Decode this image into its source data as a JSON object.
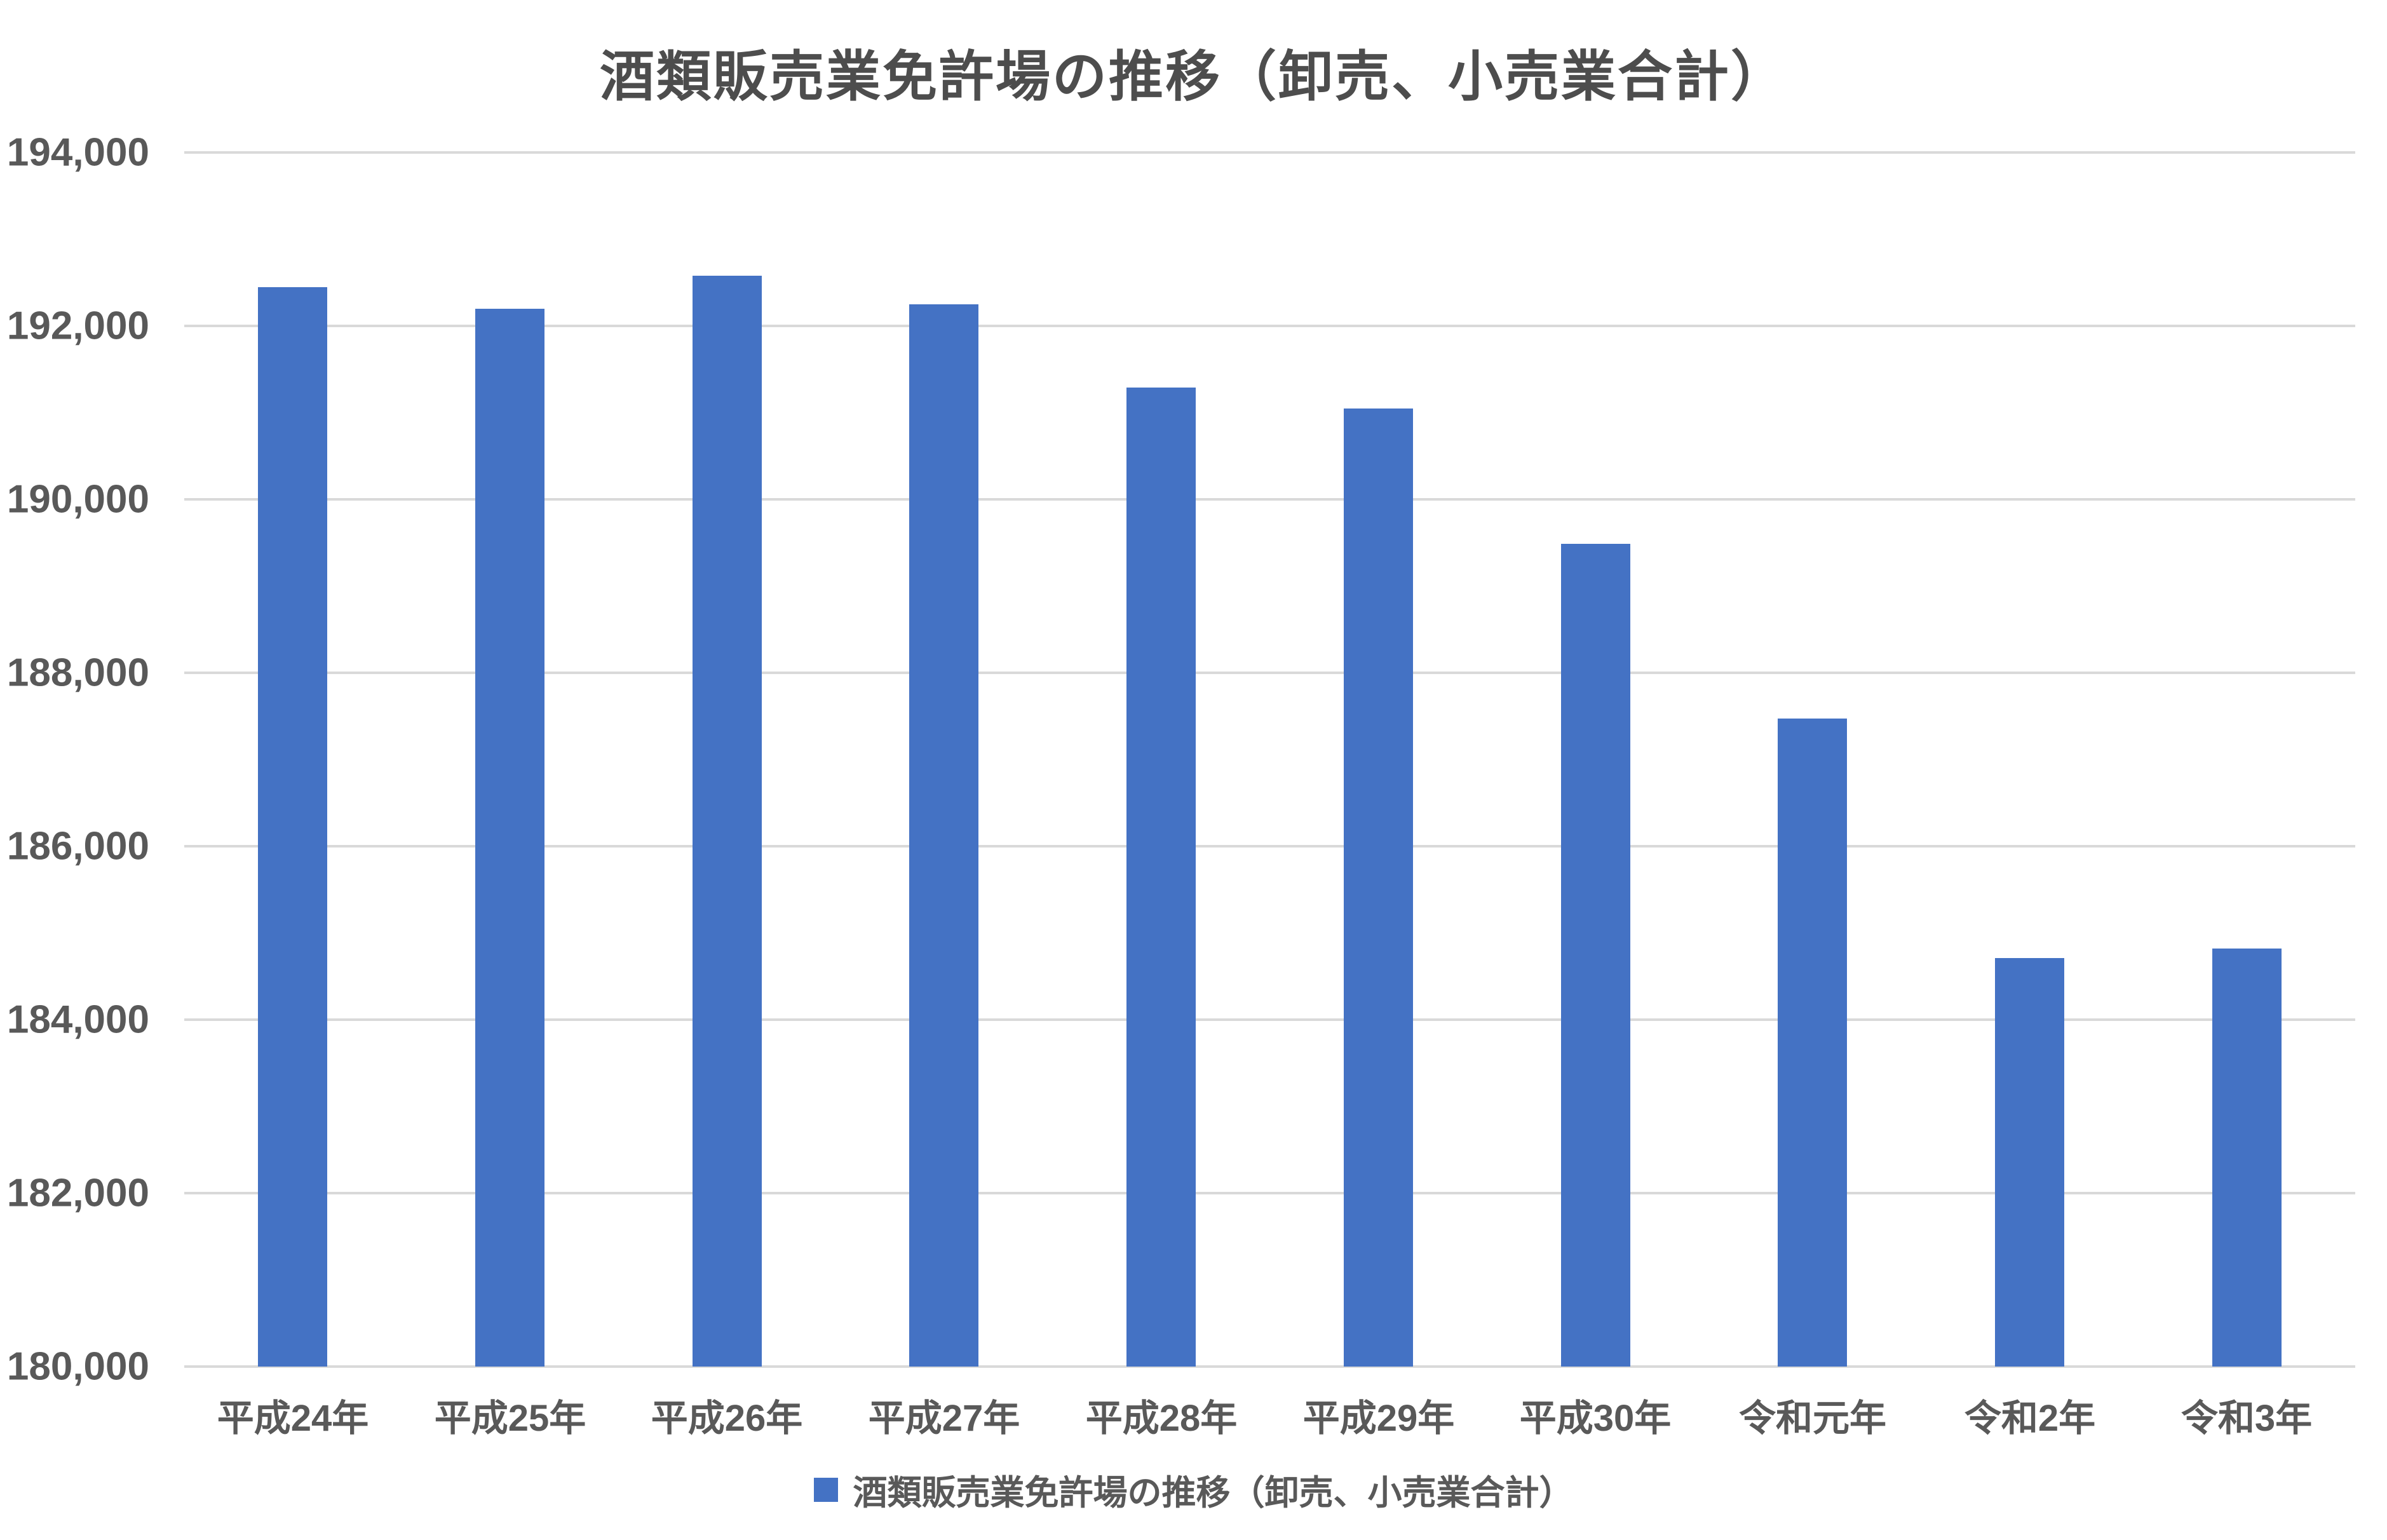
{
  "title": "酒類販売業免許場の推移（卸売、小売業合計）",
  "legend": {
    "label": "酒類販売業免許場の推移（卸売、小売業合計）",
    "position": "bottom"
  },
  "colors": {
    "bar": "#4472C4",
    "gridline": "#D9D9D9",
    "axis_text": "#595959",
    "title_text": "#4D4D4D"
  },
  "chart_data": {
    "type": "bar",
    "title": "酒類販売業免許場の推移（卸売、小売業合計）",
    "categories": [
      "平成24年",
      "平成25年",
      "平成26年",
      "平成27年",
      "平成28年",
      "平成29年",
      "平成30年",
      "令和元年",
      "令和2年",
      "令和3年"
    ],
    "values": [
      192450,
      192200,
      192580,
      192250,
      191290,
      191050,
      189490,
      187470,
      184710,
      184820
    ],
    "series_name": "酒類販売業免許場の推移（卸売、小売業合計）",
    "xlabel": "",
    "ylabel": "",
    "ylim": [
      180000,
      194000
    ],
    "ytick_step": 2000,
    "ytick_labels": [
      "194,000",
      "192,000",
      "190,000",
      "188,000",
      "186,000",
      "184,000",
      "182,000",
      "180,000"
    ],
    "grid": true,
    "legend_position": "bottom",
    "bar_color": "#4472C4"
  }
}
